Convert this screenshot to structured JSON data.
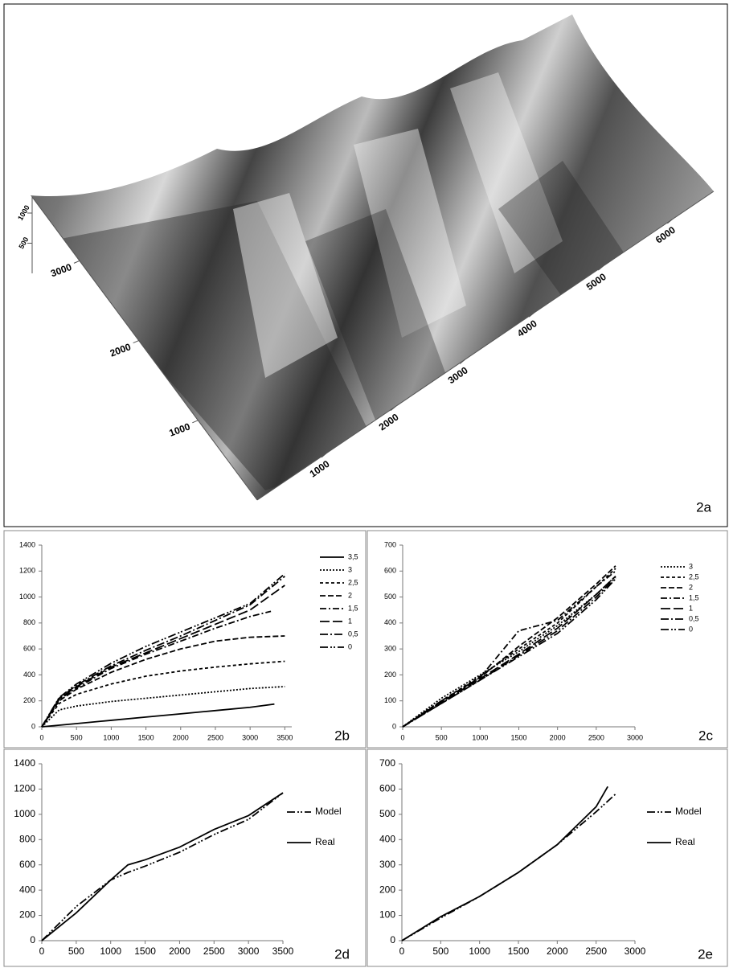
{
  "chart_data": [
    {
      "type": "surface",
      "label": "2a",
      "xlim": [
        0,
        6600
      ],
      "ylim": [
        0,
        3800
      ],
      "zlim": [
        0,
        1200
      ],
      "xticks": [
        1000,
        2000,
        3000,
        4000,
        5000,
        6000
      ],
      "yticks": [
        1000,
        2000,
        3000
      ],
      "zticks": [
        500,
        1000
      ]
    },
    {
      "type": "line",
      "label": "2b",
      "xlim": [
        0,
        3600
      ],
      "ylim": [
        0,
        1400
      ],
      "xticks": [
        0,
        500,
        1000,
        1500,
        2000,
        2500,
        3000,
        3500
      ],
      "yticks": [
        0,
        200,
        400,
        600,
        800,
        1000,
        1200,
        1400
      ],
      "series": [
        {
          "name": "3,5",
          "color": "#000",
          "dash": "none",
          "x": [
            0,
            500,
            1000,
            1500,
            2000,
            2500,
            3000,
            3350
          ],
          "values": [
            0,
            25,
            50,
            75,
            100,
            125,
            150,
            175
          ]
        },
        {
          "name": "3",
          "color": "#000",
          "dash": "2,2",
          "x": [
            0,
            250,
            500,
            1000,
            1500,
            2000,
            2500,
            3000,
            3500
          ],
          "values": [
            0,
            130,
            160,
            195,
            220,
            245,
            270,
            295,
            310
          ]
        },
        {
          "name": "2,5",
          "color": "#000",
          "dash": "4,3",
          "x": [
            0,
            250,
            500,
            1000,
            1500,
            2000,
            2500,
            3000,
            3500
          ],
          "values": [
            0,
            180,
            250,
            330,
            390,
            430,
            460,
            485,
            505
          ]
        },
        {
          "name": "2",
          "color": "#000",
          "dash": "7,3",
          "x": [
            0,
            250,
            500,
            1000,
            1500,
            2000,
            2500,
            3000,
            3500
          ],
          "values": [
            0,
            200,
            290,
            420,
            520,
            600,
            660,
            690,
            700
          ]
        },
        {
          "name": "1,5",
          "color": "#000",
          "dash": "8,3,2,3",
          "x": [
            0,
            250,
            500,
            1000,
            1500,
            2000,
            2500,
            3000,
            3300
          ],
          "values": [
            0,
            210,
            300,
            450,
            560,
            660,
            760,
            850,
            890
          ]
        },
        {
          "name": "1",
          "color": "#000",
          "dash": "12,4",
          "x": [
            0,
            250,
            500,
            1000,
            1500,
            2000,
            2500,
            3000,
            3500
          ],
          "values": [
            0,
            215,
            310,
            460,
            570,
            680,
            790,
            900,
            1090
          ]
        },
        {
          "name": "0,5",
          "color": "#000",
          "dash": "10,3,2,3",
          "x": [
            0,
            250,
            500,
            1000,
            1500,
            2000,
            2500,
            3000,
            3500
          ],
          "values": [
            0,
            220,
            320,
            470,
            590,
            700,
            820,
            940,
            1160
          ]
        },
        {
          "name": "0",
          "color": "#000",
          "dash": "10,3,2,2,2,3",
          "x": [
            0,
            250,
            500,
            1000,
            1500,
            2000,
            2500,
            3000,
            3500
          ],
          "values": [
            0,
            225,
            330,
            490,
            620,
            730,
            840,
            950,
            1180
          ]
        }
      ]
    },
    {
      "type": "line",
      "label": "2c",
      "xlim": [
        0,
        3000
      ],
      "ylim": [
        0,
        700
      ],
      "xticks": [
        0,
        500,
        1000,
        1500,
        2000,
        2500,
        3000
      ],
      "yticks": [
        0,
        100,
        200,
        300,
        400,
        500,
        600,
        700
      ],
      "series": [
        {
          "name": "3",
          "color": "#000",
          "dash": "2,2",
          "x": [
            0,
            500,
            1000,
            1500,
            2000,
            2500,
            2750
          ],
          "values": [
            0,
            110,
            200,
            290,
            390,
            510,
            580
          ]
        },
        {
          "name": "2,5",
          "color": "#000",
          "dash": "4,3",
          "x": [
            0,
            500,
            1000,
            1500,
            2000,
            2500,
            2750
          ],
          "values": [
            0,
            100,
            195,
            300,
            400,
            540,
            610
          ]
        },
        {
          "name": "2",
          "color": "#000",
          "dash": "7,3",
          "x": [
            0,
            500,
            1000,
            1500,
            2000,
            2500,
            2750
          ],
          "values": [
            0,
            100,
            190,
            310,
            420,
            550,
            620
          ]
        },
        {
          "name": "1,5",
          "color": "#000",
          "dash": "8,3,2,3",
          "x": [
            0,
            500,
            1000,
            1500,
            2000,
            2500,
            2750
          ],
          "values": [
            0,
            95,
            190,
            370,
            410,
            540,
            600
          ]
        },
        {
          "name": "1",
          "color": "#000",
          "dash": "12,4",
          "x": [
            0,
            500,
            1000,
            1500,
            2000,
            2500,
            2750
          ],
          "values": [
            0,
            95,
            185,
            280,
            380,
            510,
            580
          ]
        },
        {
          "name": "0,5",
          "color": "#000",
          "dash": "10,3,2,3",
          "x": [
            0,
            500,
            1000,
            1500,
            2000,
            2500,
            2750
          ],
          "values": [
            0,
            90,
            180,
            275,
            370,
            500,
            575
          ]
        },
        {
          "name": "0",
          "color": "#000",
          "dash": "10,3,2,2,2,3",
          "x": [
            0,
            500,
            1000,
            1500,
            2000,
            2500,
            2750
          ],
          "values": [
            0,
            90,
            180,
            270,
            360,
            490,
            570
          ]
        }
      ]
    },
    {
      "type": "line",
      "label": "2d",
      "xlim": [
        0,
        3500
      ],
      "ylim": [
        0,
        1400
      ],
      "xticks": [
        0,
        500,
        1000,
        1500,
        2000,
        2500,
        3000,
        3500
      ],
      "yticks": [
        0,
        200,
        400,
        600,
        800,
        1000,
        1200,
        1400
      ],
      "series": [
        {
          "name": "Model",
          "color": "#000",
          "dash": "10,3,2,2,2,3",
          "x": [
            0,
            500,
            1000,
            1250,
            1500,
            2000,
            2500,
            3000,
            3500
          ],
          "values": [
            0,
            270,
            480,
            540,
            590,
            700,
            840,
            960,
            1170
          ]
        },
        {
          "name": "Real",
          "color": "#000",
          "dash": "none",
          "x": [
            0,
            500,
            1000,
            1250,
            1500,
            2000,
            2500,
            3000,
            3500
          ],
          "values": [
            0,
            220,
            480,
            600,
            640,
            740,
            880,
            990,
            1170
          ]
        }
      ]
    },
    {
      "type": "line",
      "label": "2e",
      "xlim": [
        0,
        3000
      ],
      "ylim": [
        0,
        700
      ],
      "xticks": [
        0,
        500,
        1000,
        1500,
        2000,
        2500,
        3000
      ],
      "yticks": [
        0,
        100,
        200,
        300,
        400,
        500,
        600,
        700
      ],
      "series": [
        {
          "name": "Model",
          "color": "#000",
          "dash": "10,3,2,2,2,3",
          "x": [
            0,
            500,
            1000,
            1500,
            2000,
            2500,
            2750
          ],
          "values": [
            0,
            90,
            175,
            270,
            380,
            510,
            580
          ]
        },
        {
          "name": "Real",
          "color": "#000",
          "dash": "none",
          "x": [
            0,
            500,
            1000,
            1500,
            2000,
            2500,
            2650
          ],
          "values": [
            0,
            95,
            175,
            270,
            380,
            530,
            610
          ]
        }
      ]
    }
  ]
}
